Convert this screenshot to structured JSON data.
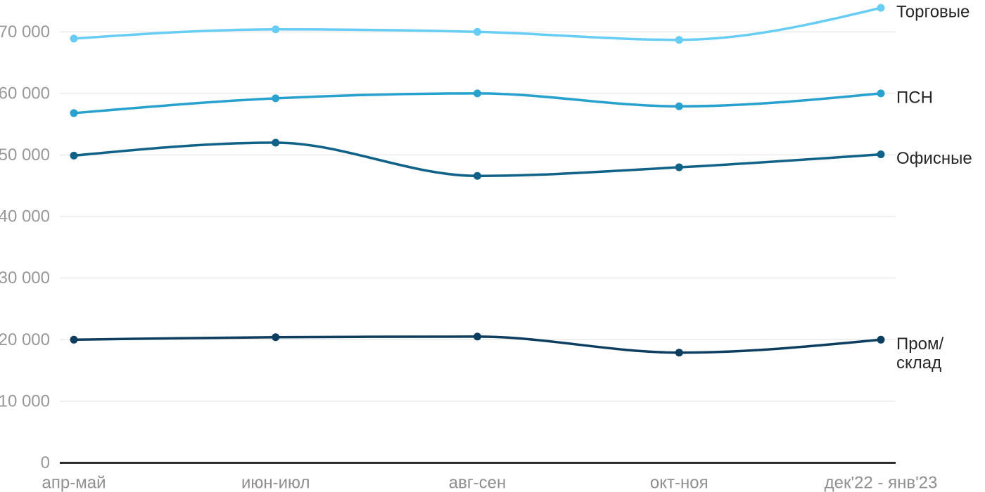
{
  "chart_data": {
    "type": "line",
    "categories": [
      "апр-май",
      "июн-июл",
      "авг-сен",
      "окт-ноя",
      "дек'22 - янв'23"
    ],
    "series": [
      {
        "name": "Торговые",
        "label_lines": [
          "Торговые"
        ],
        "color": "#67CDF4",
        "values": [
          68900,
          70400,
          70000,
          68700,
          73900
        ]
      },
      {
        "name": "ПСН",
        "label_lines": [
          "ПСН"
        ],
        "color": "#29A1CE",
        "values": [
          56800,
          59200,
          60000,
          57900,
          60000
        ]
      },
      {
        "name": "Офисные",
        "label_lines": [
          "Офисные"
        ],
        "color": "#116288",
        "values": [
          49900,
          52000,
          46600,
          48000,
          50100
        ]
      },
      {
        "name": "Пром/склад",
        "label_lines": [
          "Пром/",
          "склад"
        ],
        "color": "#0D3D5F",
        "values": [
          20000,
          20400,
          20500,
          17900,
          20000
        ]
      }
    ],
    "yticks": [
      0,
      10000,
      20000,
      30000,
      40000,
      50000,
      60000,
      70000
    ],
    "ytick_labels": [
      "0",
      "10 000",
      "20 000",
      "30 000",
      "40 000",
      "50 000",
      "60 000",
      "70 000"
    ],
    "ylim": [
      0,
      74500
    ],
    "grid": "horizontal",
    "legend_position": "right-of-line-ends",
    "title": "",
    "xlabel": "",
    "ylabel": "",
    "colors": {
      "grid": "#e0e0e0",
      "axis": "#1c1c1c",
      "ytick_text": "#989898",
      "xtick_text": "#8f8f8f",
      "series_label_text": "#262626",
      "background": "#ffffff"
    }
  }
}
